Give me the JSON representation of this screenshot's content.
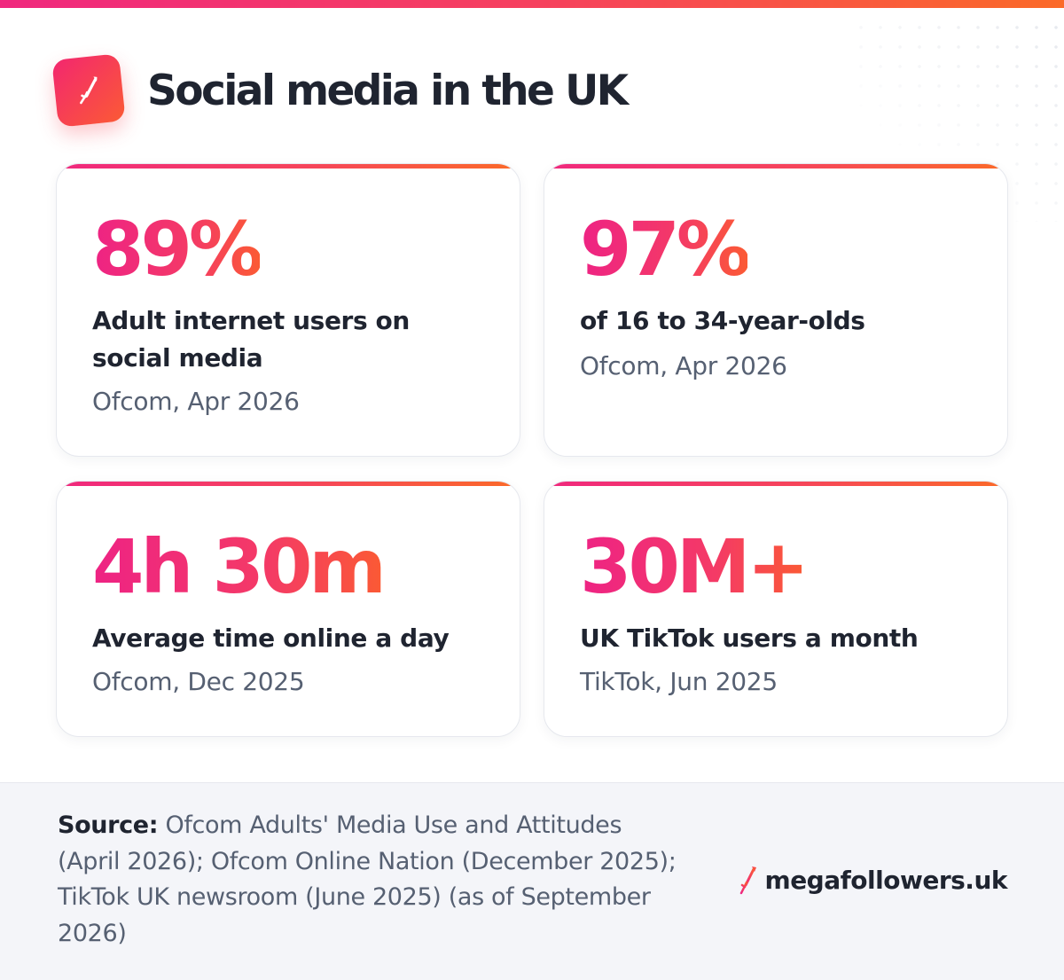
{
  "header": {
    "title": "Social media in the UK",
    "logo_icon": "rocket-arrow-icon"
  },
  "colors": {
    "accent_pink": "#f0287e",
    "accent_orange": "#fb6a28",
    "text_dark": "#1f2430",
    "text_muted": "#566072",
    "footer_bg": "#f4f5f9"
  },
  "stats": [
    {
      "value": "89%",
      "label": "Adult internet users on social media",
      "source": "Ofcom, Apr 2026"
    },
    {
      "value": "97%",
      "label": "of 16 to 34-year-olds",
      "source": "Ofcom, Apr 2026"
    },
    {
      "value": "4h 30m",
      "label": "Average time online a day",
      "source": "Ofcom, Dec 2025"
    },
    {
      "value": "30M+",
      "label": "UK TikTok users a month",
      "source": "TikTok, Jun 2025"
    }
  ],
  "footer": {
    "source_label": "Source:",
    "source_text": "Ofcom Adults' Media Use and Attitudes (April 2026); Ofcom Online Nation (December 2025); TikTok UK newsroom (June 2025) (as of September 2026)",
    "brand_name": "megafollowers.uk",
    "brand_icon": "rocket-arrow-icon"
  }
}
